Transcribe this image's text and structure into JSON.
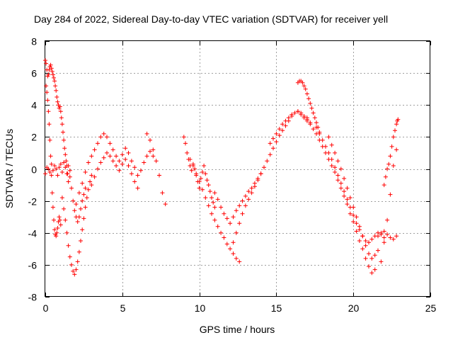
{
  "chart_data": {
    "type": "scatter",
    "title": "Day 284 of 2022, Sidereal Day-to-day VTEC variation (SDTVAR) for receiver yell",
    "xlabel": "GPS time / hours",
    "ylabel": "SDTVAR / TECUs",
    "xlim": [
      0,
      25
    ],
    "ylim": [
      -8,
      8
    ],
    "xticks": [
      "0",
      "5",
      "10",
      "15",
      "20",
      "25"
    ],
    "xtick_values": [
      0,
      5,
      10,
      15,
      20,
      25
    ],
    "yticks": [
      "8",
      "6",
      "4",
      "2",
      "0",
      "-2",
      "-4",
      "-6",
      "-8"
    ],
    "ytick_values": [
      8,
      6,
      4,
      2,
      0,
      -2,
      -4,
      -6,
      -8
    ],
    "grid": true,
    "marker": "+",
    "color": "#ff0000",
    "series": [
      {
        "name": "SDTVAR",
        "x": [
          0.0,
          0.05,
          0.1,
          0.15,
          0.2,
          0.25,
          0.3,
          0.35,
          0.4,
          0.45,
          0.5,
          0.55,
          0.6,
          0.65,
          0.7,
          0.75,
          0.8,
          0.85,
          0.9,
          0.95,
          1.0,
          1.05,
          1.1,
          1.15,
          1.2,
          1.25,
          1.3,
          1.35,
          1.4,
          1.45,
          1.5,
          0.05,
          0.1,
          0.15,
          0.2,
          0.25,
          0.3,
          0.35,
          0.4,
          0.45,
          0.5,
          0.55,
          0.6,
          0.65,
          0.7,
          0.75,
          0.8,
          0.85,
          0.9,
          0.95,
          1.0,
          0.0,
          0.1,
          0.2,
          0.3,
          0.4,
          0.5,
          0.6,
          0.7,
          0.8,
          0.9,
          1.0,
          1.1,
          1.2,
          1.3,
          1.4,
          1.5,
          1.6,
          1.1,
          1.2,
          1.3,
          1.4,
          1.5,
          1.6,
          1.7,
          1.8,
          1.9,
          2.0,
          2.1,
          2.2,
          2.3,
          2.4,
          2.5,
          2.6,
          2.7,
          2.8,
          2.9,
          3.0,
          1.6,
          1.7,
          1.8,
          1.9,
          2.0,
          2.1,
          2.2,
          2.3,
          2.4,
          2.5,
          2.6,
          2.0,
          2.2,
          2.4,
          2.6,
          2.8,
          3.0,
          3.2,
          3.4,
          3.6,
          3.8,
          4.0,
          4.2,
          4.4,
          4.6,
          4.8,
          5.0,
          5.2,
          5.4,
          5.6,
          5.8,
          6.0,
          6.2,
          6.4,
          6.6,
          6.8,
          7.0,
          3.0,
          3.2,
          3.4,
          3.6,
          3.8,
          4.0,
          4.2,
          4.4,
          4.6,
          4.8,
          5.0,
          5.2,
          5.4,
          5.6,
          5.8,
          6.0,
          6.6,
          6.8,
          7.0,
          7.2,
          7.4,
          7.6,
          7.8,
          9.0,
          9.1,
          9.2,
          9.3,
          9.4,
          9.5,
          9.6,
          9.7,
          9.8,
          9.9,
          10.0,
          10.1,
          10.2,
          10.3,
          10.4,
          10.5,
          10.6,
          10.7,
          10.8,
          10.9,
          11.0,
          9.4,
          9.6,
          9.8,
          10.0,
          10.2,
          10.4,
          10.6,
          10.8,
          11.0,
          11.2,
          11.4,
          11.6,
          11.8,
          12.0,
          12.2,
          12.4,
          12.6,
          11.0,
          11.2,
          11.4,
          11.6,
          11.8,
          12.0,
          12.2,
          12.4,
          12.6,
          12.8,
          13.0,
          13.2,
          13.4,
          13.6,
          13.8,
          14.0,
          12.2,
          12.4,
          12.6,
          12.8,
          13.0,
          13.2,
          13.4,
          13.6,
          13.8,
          14.0,
          14.2,
          14.4,
          14.6,
          14.8,
          15.0,
          15.2,
          15.4,
          15.6,
          15.8,
          16.0,
          16.2,
          16.4,
          16.6,
          16.8,
          17.0,
          14.6,
          14.8,
          15.0,
          15.2,
          15.4,
          15.6,
          15.8,
          16.0,
          16.2,
          16.4,
          16.6,
          16.8,
          17.0,
          17.2,
          16.4,
          16.5,
          16.6,
          16.7,
          16.8,
          16.9,
          17.0,
          17.1,
          17.2,
          17.3,
          17.4,
          17.5,
          17.6,
          17.7,
          17.8,
          17.0,
          17.2,
          17.4,
          17.6,
          17.8,
          18.0,
          18.2,
          18.4,
          18.6,
          18.8,
          19.0,
          19.2,
          19.4,
          19.6,
          19.8,
          20.0,
          20.2,
          20.4,
          20.6,
          20.8,
          21.0,
          21.2,
          21.4,
          17.6,
          17.8,
          18.0,
          18.2,
          18.4,
          18.6,
          18.8,
          19.0,
          19.2,
          19.4,
          19.6,
          19.8,
          20.0,
          20.2,
          20.4,
          20.6,
          20.8,
          21.0,
          21.2,
          21.4,
          21.6,
          21.8,
          22.0,
          18.4,
          18.6,
          18.8,
          19.0,
          19.2,
          19.4,
          19.6,
          19.8,
          20.0,
          20.2,
          20.4,
          20.6,
          20.8,
          21.0,
          21.2,
          21.4,
          21.6,
          21.6,
          21.8,
          22.0,
          22.2,
          22.4,
          22.6,
          22.8,
          21.8,
          22.0,
          22.2,
          22.4,
          22.6,
          22.8,
          22.0,
          22.1,
          22.2,
          22.3,
          22.4,
          22.5,
          22.6,
          22.7,
          22.8,
          22.85,
          22.9
        ],
        "y": [
          6.8,
          6.6,
          6.2,
          5.8,
          5.9,
          6.2,
          6.4,
          6.5,
          6.3,
          6.1,
          5.9,
          5.7,
          5.5,
          5.2,
          4.9,
          4.5,
          4.2,
          4.0,
          3.8,
          3.9,
          3.6,
          3.2,
          2.8,
          2.3,
          1.8,
          1.3,
          0.9,
          0.5,
          0.2,
          -0.3,
          -0.8,
          5.2,
          4.8,
          4.3,
          3.6,
          2.8,
          1.8,
          0.8,
          -0.4,
          -1.5,
          -2.4,
          -3.2,
          -3.8,
          -4.1,
          -4.2,
          -4.0,
          -3.7,
          -3.3,
          -3.0,
          -3.2,
          -3.5,
          -0.3,
          0.1,
          0.0,
          -0.2,
          0.3,
          -0.1,
          0.2,
          0.0,
          -0.4,
          0.1,
          0.3,
          -0.2,
          0.4,
          0.1,
          -0.3,
          0.2,
          -0.1,
          -1.8,
          -2.5,
          -3.2,
          -4.0,
          -4.8,
          -5.5,
          -6.0,
          -6.4,
          -6.6,
          -6.3,
          -5.8,
          -5.2,
          -4.5,
          -3.8,
          -3.1,
          -2.4,
          -1.8,
          -1.3,
          -0.8,
          -0.4,
          -0.5,
          -1.2,
          -2.0,
          -2.6,
          -3.0,
          -3.3,
          -3.0,
          -2.5,
          -2.0,
          -1.6,
          -1.2,
          -2.2,
          -1.5,
          -0.9,
          -0.2,
          0.4,
          0.8,
          1.2,
          1.6,
          2.0,
          2.2,
          2.0,
          1.6,
          1.2,
          0.8,
          0.5,
          0.9,
          1.3,
          1.0,
          0.5,
          0.1,
          -0.4,
          -0.1,
          0.4,
          0.8,
          1.1,
          0.8,
          -1.0,
          -0.5,
          0.0,
          0.4,
          0.7,
          1.0,
          0.8,
          0.5,
          0.2,
          -0.1,
          0.3,
          0.6,
          0.2,
          -0.3,
          -0.8,
          -1.2,
          2.2,
          1.8,
          1.2,
          0.5,
          -0.4,
          -1.5,
          -2.2,
          2.0,
          1.6,
          1.0,
          0.6,
          0.2,
          -0.1,
          0.3,
          0.0,
          -0.4,
          -0.8,
          -1.2,
          -0.6,
          -0.2,
          0.2,
          -0.3,
          -0.7,
          -1.0,
          -1.4,
          -1.8,
          -2.1,
          -2.4,
          0.6,
          0.2,
          -0.3,
          -0.8,
          -1.3,
          -1.8,
          -2.3,
          -2.8,
          -3.2,
          -3.6,
          -4.0,
          -4.3,
          -4.7,
          -5.0,
          -5.3,
          -5.6,
          -5.8,
          -1.5,
          -1.9,
          -2.4,
          -2.8,
          -3.1,
          -3.4,
          -3.0,
          -2.6,
          -2.3,
          -2.0,
          -1.7,
          -1.4,
          -1.2,
          -0.9,
          -0.6,
          -0.3,
          -4.6,
          -4.0,
          -3.4,
          -2.8,
          -2.3,
          -1.9,
          -1.5,
          -1.1,
          -0.7,
          -0.3,
          0.1,
          0.5,
          0.9,
          1.3,
          1.7,
          2.1,
          2.4,
          2.7,
          3.0,
          3.3,
          3.5,
          3.6,
          3.4,
          3.2,
          3.0,
          1.6,
          1.9,
          2.2,
          2.5,
          2.8,
          3.0,
          3.2,
          3.4,
          3.5,
          3.6,
          3.5,
          3.3,
          3.1,
          2.9,
          5.4,
          5.5,
          5.5,
          5.4,
          5.2,
          5.0,
          4.7,
          4.4,
          4.1,
          3.8,
          3.5,
          3.2,
          2.9,
          2.6,
          2.3,
          3.2,
          2.8,
          2.5,
          2.2,
          1.8,
          1.4,
          1.0,
          0.6,
          0.2,
          -0.2,
          -0.7,
          -1.2,
          -1.7,
          -2.2,
          -2.8,
          -3.3,
          -3.9,
          -4.5,
          -5.0,
          -5.6,
          -6.1,
          -6.5,
          -6.3,
          2.6,
          2.2,
          1.8,
          1.4,
          1.0,
          0.6,
          0.1,
          -0.4,
          -0.9,
          -1.4,
          -1.9,
          -2.4,
          -2.9,
          -3.4,
          -3.8,
          -4.2,
          -4.5,
          -4.6,
          -4.4,
          -4.2,
          -4.0,
          -4.1,
          -4.3,
          2.0,
          1.5,
          1.0,
          0.5,
          0.0,
          -0.6,
          -1.2,
          -1.8,
          -2.4,
          -3.0,
          -3.6,
          -4.2,
          -4.8,
          -5.3,
          -5.6,
          -5.4,
          -5.1,
          -4.2,
          -4.0,
          -3.9,
          -4.1,
          -4.3,
          -4.4,
          -4.2,
          -5.8,
          -4.6,
          -3.2,
          -1.6,
          0.2,
          1.2,
          -1.0,
          -0.5,
          0.0,
          0.3,
          0.8,
          1.4,
          2.0,
          2.4,
          2.8,
          3.0,
          3.1
        ]
      }
    ]
  }
}
